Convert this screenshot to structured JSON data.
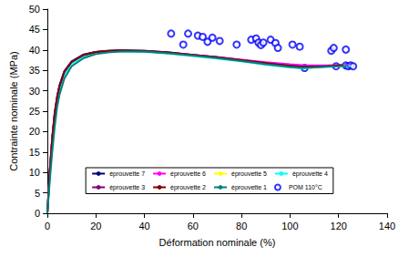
{
  "chart_data": {
    "type": "line",
    "x_label": "Déformation nominale (%)",
    "y_label": "Contrainte nominale (MPa)",
    "xlim": [
      0,
      140
    ],
    "xticks": [
      0,
      20,
      40,
      60,
      80,
      100,
      120,
      140
    ],
    "ylim": [
      0,
      50
    ],
    "yticks": [
      0,
      5,
      10,
      15,
      20,
      25,
      30,
      35,
      40,
      45,
      50
    ],
    "grid": false,
    "legend": "lower center",
    "series": [
      {
        "name": "éprouvette 7",
        "type": "line",
        "color": "#000080",
        "line_style": "solid",
        "x": [
          0,
          1,
          2,
          3,
          4,
          5,
          7,
          10,
          15,
          20,
          25,
          30,
          40,
          50,
          60,
          70,
          80,
          90,
          100,
          105,
          110,
          115,
          120,
          124
        ],
        "values": [
          0,
          10.5,
          18.5,
          24.5,
          28.5,
          31.3,
          34.8,
          37.2,
          38.9,
          39.5,
          39.8,
          39.9,
          39.8,
          39.4,
          38.8,
          38.2,
          37.5,
          36.8,
          36.2,
          36.0,
          36.0,
          36.1,
          36.2,
          36.3
        ]
      },
      {
        "name": "éprouvette 6",
        "type": "line",
        "color": "#ff00ff",
        "line_style": "solid",
        "x": [
          0,
          1,
          2,
          3,
          4,
          5,
          7,
          10,
          15,
          20,
          25,
          30,
          40,
          50,
          60,
          70,
          80,
          90,
          100,
          105,
          110,
          115,
          120,
          125
        ],
        "values": [
          0,
          10,
          18,
          24,
          28,
          31,
          34.5,
          37,
          38.7,
          39.4,
          39.7,
          39.8,
          39.7,
          39.3,
          38.8,
          38.2,
          37.6,
          37.0,
          36.5,
          36.3,
          36.2,
          36.2,
          36.3,
          36.4
        ]
      },
      {
        "name": "éprouvette 5",
        "type": "line",
        "color": "#ffff00",
        "line_style": "solid",
        "x": [
          0,
          1,
          2,
          3,
          4,
          5,
          7,
          10,
          15,
          20,
          25,
          30,
          40,
          50,
          60,
          70,
          80,
          90,
          100,
          105,
          110,
          115,
          120,
          123
        ],
        "values": [
          0,
          9.5,
          17.5,
          23.5,
          27.5,
          30.5,
          34.2,
          36.8,
          38.5,
          39.2,
          39.6,
          39.7,
          39.6,
          39.2,
          38.6,
          38.0,
          37.3,
          36.6,
          35.9,
          35.7,
          35.8,
          35.9,
          36.1,
          36.2
        ]
      },
      {
        "name": "éprouvette 4",
        "type": "line",
        "color": "#00ffff",
        "line_style": "solid",
        "x": [
          0,
          1,
          2,
          3,
          4,
          5,
          7,
          10,
          15,
          20,
          25,
          30,
          40,
          50,
          60,
          70,
          80,
          90,
          100,
          105,
          110,
          115,
          120,
          125
        ],
        "values": [
          0,
          9,
          17,
          23,
          27,
          30,
          34,
          36.6,
          38.4,
          39.1,
          39.5,
          39.6,
          39.5,
          39.1,
          38.5,
          37.9,
          37.2,
          36.4,
          35.7,
          35.5,
          35.7,
          35.9,
          36.0,
          36.1
        ]
      },
      {
        "name": "éprouvette 3",
        "type": "line",
        "color": "#800080",
        "line_style": "solid",
        "x": [
          0,
          1,
          2,
          3,
          4,
          5,
          7,
          10,
          15,
          20,
          25,
          30,
          40,
          50,
          60,
          70,
          80,
          90,
          100,
          105,
          110,
          115,
          118
        ],
        "values": [
          0,
          10.2,
          18.2,
          24.2,
          28.2,
          31.1,
          34.6,
          37.1,
          38.8,
          39.5,
          39.7,
          39.8,
          39.7,
          39.3,
          38.7,
          38.1,
          37.4,
          36.7,
          36.0,
          35.8,
          35.9,
          36.0,
          36.0
        ]
      },
      {
        "name": "éprouvette 2",
        "type": "line",
        "color": "#800000",
        "line_style": "solid",
        "x": [
          0,
          1,
          2,
          3,
          4,
          5,
          7,
          10,
          15,
          20,
          25,
          30,
          40,
          50,
          60,
          70,
          80,
          90,
          100,
          105,
          110,
          115,
          120,
          122
        ],
        "values": [
          0,
          10.3,
          18.3,
          24.3,
          28.3,
          31.2,
          34.7,
          37.1,
          38.8,
          39.5,
          39.8,
          39.9,
          39.8,
          39.4,
          38.8,
          38.2,
          37.5,
          36.8,
          36.1,
          35.9,
          35.9,
          36.0,
          36.2,
          36.2
        ]
      },
      {
        "name": "éprouvette 1",
        "type": "line",
        "color": "#008080",
        "line_style": "solid",
        "x": [
          0,
          1,
          2,
          3,
          4,
          5,
          7,
          10,
          15,
          20,
          25,
          30,
          40,
          50,
          60,
          70,
          80,
          90,
          100,
          105,
          110,
          115,
          120,
          124
        ],
        "values": [
          0,
          8,
          15,
          21,
          26,
          29,
          33,
          36,
          38,
          39,
          39.4,
          39.6,
          39.6,
          39.2,
          38.6,
          38.0,
          37.3,
          36.5,
          35.8,
          35.6,
          35.7,
          35.9,
          36.0,
          36.1
        ]
      },
      {
        "name": "POM 110°C",
        "type": "scatter",
        "color": "#0000ff",
        "marker": "open circle",
        "x": [
          51,
          56,
          58,
          62,
          64,
          66,
          68,
          71,
          78,
          84,
          86,
          87,
          88,
          89,
          92,
          94,
          95,
          101,
          104,
          106,
          117,
          118,
          119,
          123,
          123,
          124,
          125,
          126
        ],
        "values": [
          44,
          41.3,
          44,
          43.5,
          43.2,
          42,
          43,
          42.2,
          41.3,
          42.5,
          42.8,
          41.8,
          41.2,
          41.8,
          42.5,
          41.7,
          40.5,
          41.3,
          40.8,
          35.6,
          39.8,
          40.5,
          36,
          40.1,
          36.2,
          36,
          36.2,
          36
        ]
      }
    ]
  }
}
